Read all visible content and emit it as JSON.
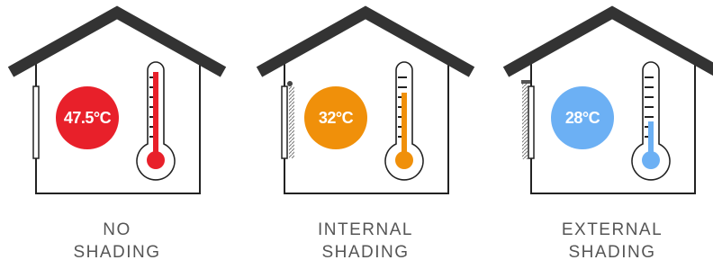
{
  "panels": [
    {
      "temperature": "47.5°C",
      "caption": [
        "NO",
        "SHADING"
      ]
    },
    {
      "temperature": "32°C",
      "caption": [
        "INTERNAL",
        "SHADING"
      ]
    },
    {
      "temperature": "28°C",
      "caption": [
        "EXTERNAL",
        "SHADING"
      ]
    }
  ]
}
